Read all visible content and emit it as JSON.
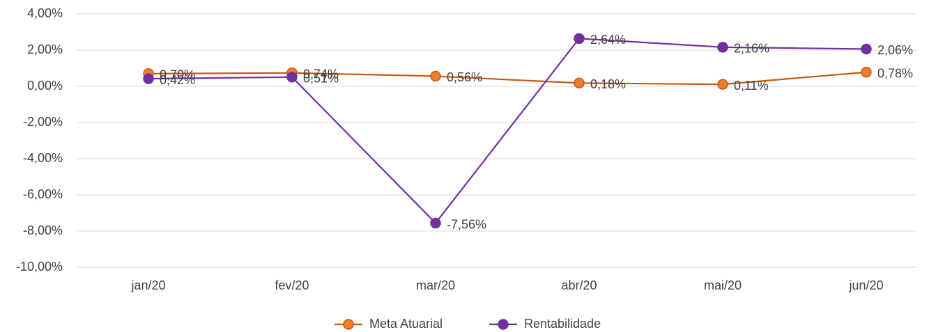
{
  "chart_data": {
    "type": "line",
    "categories": [
      "jan/20",
      "fev/20",
      "mar/20",
      "abr/20",
      "mai/20",
      "jun/20"
    ],
    "series": [
      {
        "name": "Meta Atuarial",
        "color": "#c55a11",
        "marker_color": "#ed7d31",
        "values": [
          0.7,
          0.74,
          0.56,
          0.18,
          0.11,
          0.78
        ],
        "value_labels": [
          "0,70%",
          "0,74%",
          "0,56%",
          "0,18%",
          "0,11%",
          "0,78%"
        ]
      },
      {
        "name": "Rentabilidade",
        "color": "#7030a0",
        "marker_color": "#7030a0",
        "values": [
          0.42,
          0.51,
          -7.56,
          2.64,
          2.16,
          2.06
        ],
        "value_labels": [
          "0,42%",
          "0,51%",
          "-7,56%",
          "2,64%",
          "2,16%",
          "2,06%"
        ]
      }
    ],
    "ylim": [
      -10,
      4
    ],
    "yticks": [
      {
        "value": -10,
        "label": "-10,00%"
      },
      {
        "value": -8,
        "label": "-8,00%"
      },
      {
        "value": -6,
        "label": "-6,00%"
      },
      {
        "value": -4,
        "label": "-4,00%"
      },
      {
        "value": -2,
        "label": "-2,00%"
      },
      {
        "value": 0,
        "label": "0,00%"
      },
      {
        "value": 2,
        "label": "2,00%"
      },
      {
        "value": 4,
        "label": "4,00%"
      }
    ],
    "grid": true,
    "legend": "bottom"
  }
}
